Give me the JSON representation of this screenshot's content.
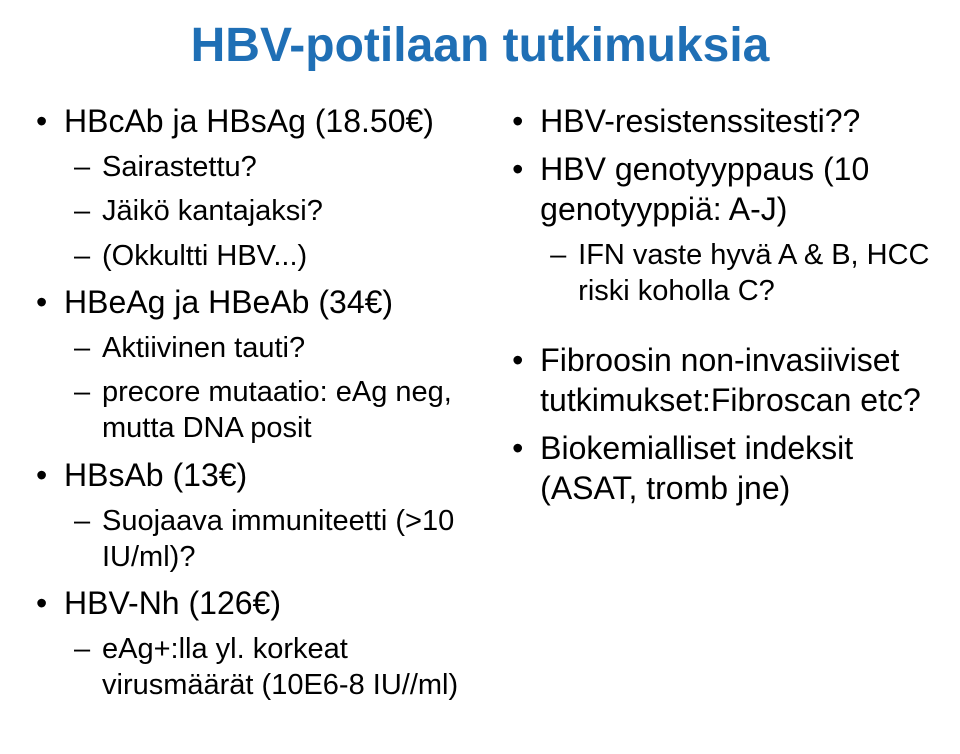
{
  "title": "HBV-potilaan tutkimuksia",
  "title_fontsize": 48,
  "body_fontsize_lvl1": 32,
  "body_fontsize_lvl2": 29,
  "left": {
    "i0": "HBcAb ja HBsAg (18.50€)",
    "i0a": "Sairastettu?",
    "i0b": "Jäikö kantajaksi?",
    "i0c": "(Okkultti HBV...)",
    "i1": "HBeAg ja HBeAb (34€)",
    "i1a": "Aktiivinen tauti?",
    "i1b": "precore mutaatio: eAg neg, mutta DNA posit",
    "i2": "HBsAb (13€)",
    "i2a": "Suojaava immuniteetti (>10 IU/ml)?",
    "i3": "HBV-Nh (126€)",
    "i3a": "eAg+:lla yl. korkeat virusmäärät (10E6-8 IU//ml)"
  },
  "right": {
    "r0": "HBV-resistenssitesti??",
    "r1": "HBV genotyyppaus (10 genotyyppiä: A-J)",
    "r1a": "IFN vaste hyvä A & B, HCC riski koholla C?",
    "r2": "Fibroosin non-invasiiviset tutkimukset:Fibroscan etc?",
    "r3": "Biokemialliset indeksit (ASAT, tromb jne)"
  },
  "colors": {
    "title": "#1f6fb5",
    "text": "#000000",
    "background": "#ffffff"
  }
}
